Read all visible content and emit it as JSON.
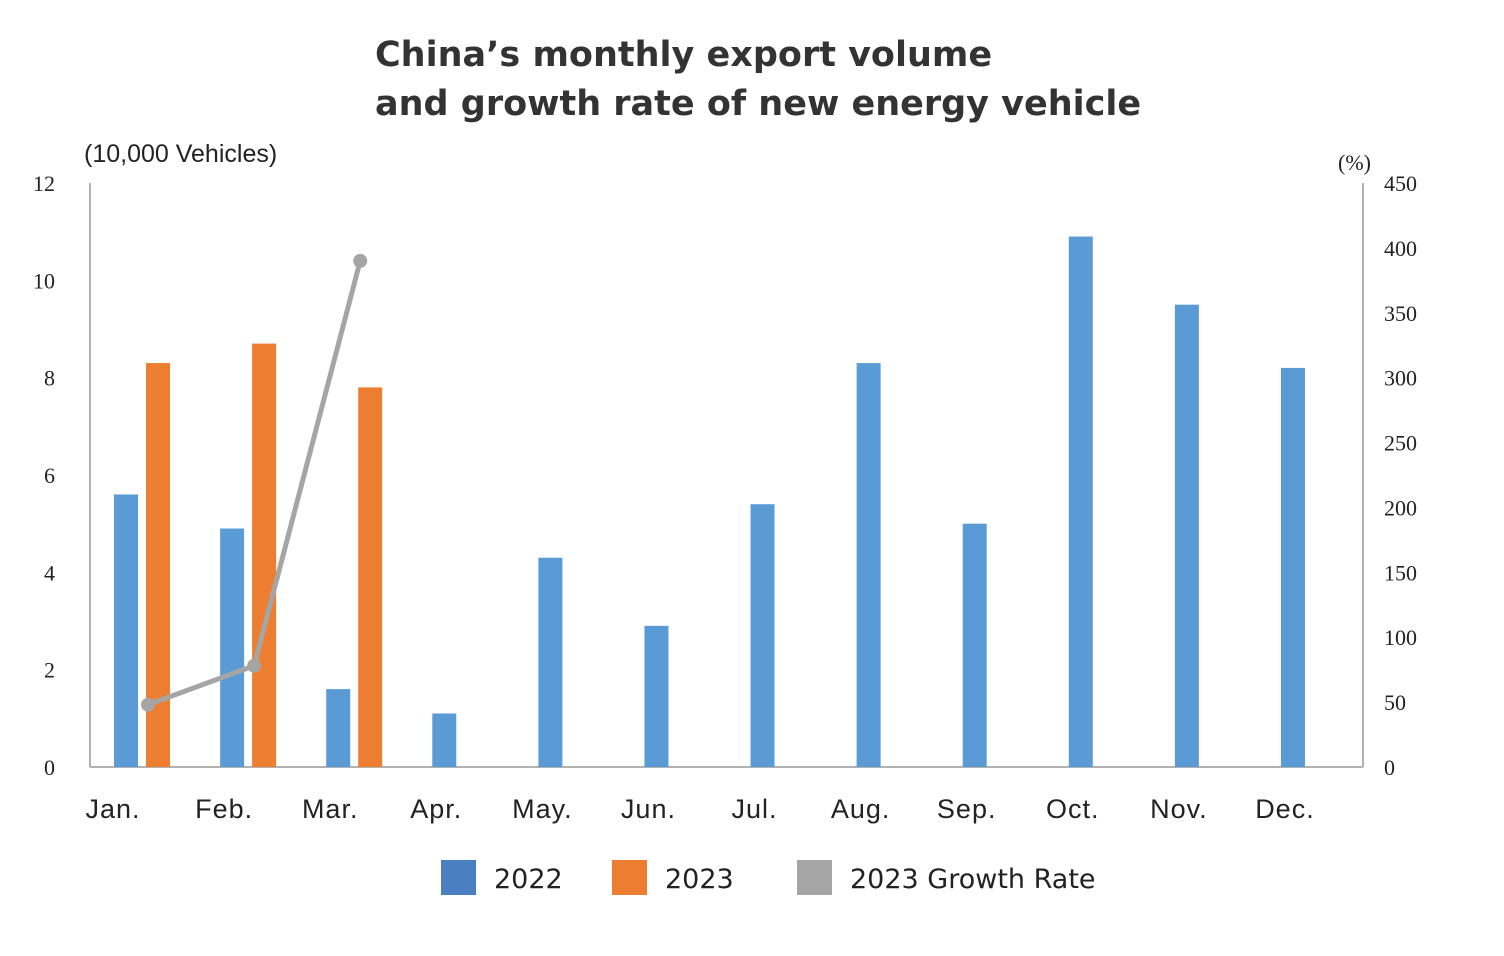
{
  "chart_data": {
    "type": "bar",
    "title_lines": [
      "China’s monthly export volume",
      "and growth rate of new energy vehicle"
    ],
    "ylabel": "(10,000 Vehicles)",
    "y2label": "(%)",
    "ylim": [
      0,
      12
    ],
    "yticks": [
      0,
      2,
      4,
      6,
      8,
      10,
      12
    ],
    "y2lim": [
      0,
      450
    ],
    "y2ticks": [
      0,
      50,
      100,
      150,
      200,
      250,
      300,
      350,
      400,
      450
    ],
    "grid": false,
    "legend_placement": "bottom",
    "categories": [
      "Jan.",
      "Feb.",
      "Mar.",
      "Apr.",
      "May.",
      "Jun.",
      "Jul.",
      "Aug.",
      "Sep.",
      "Oct.",
      "Nov.",
      "Dec."
    ],
    "series": [
      {
        "name": "2022",
        "type": "bar",
        "axis": "left",
        "color": "#5b9bd5",
        "legend_color": "#4a7fc1",
        "values": [
          5.6,
          4.9,
          1.6,
          1.1,
          4.3,
          2.9,
          5.4,
          8.3,
          5.0,
          10.9,
          9.5,
          8.2
        ]
      },
      {
        "name": "2023",
        "type": "bar",
        "axis": "left",
        "color": "#ed7d31",
        "values": [
          8.3,
          8.7,
          7.8,
          null,
          null,
          null,
          null,
          null,
          null,
          null,
          null,
          null
        ]
      },
      {
        "name": "2023 Growth Rate",
        "type": "line",
        "axis": "right",
        "color": "#a5a5a5",
        "values": [
          48,
          78,
          390,
          null,
          null,
          null,
          null,
          null,
          null,
          null,
          null,
          null
        ]
      }
    ]
  }
}
